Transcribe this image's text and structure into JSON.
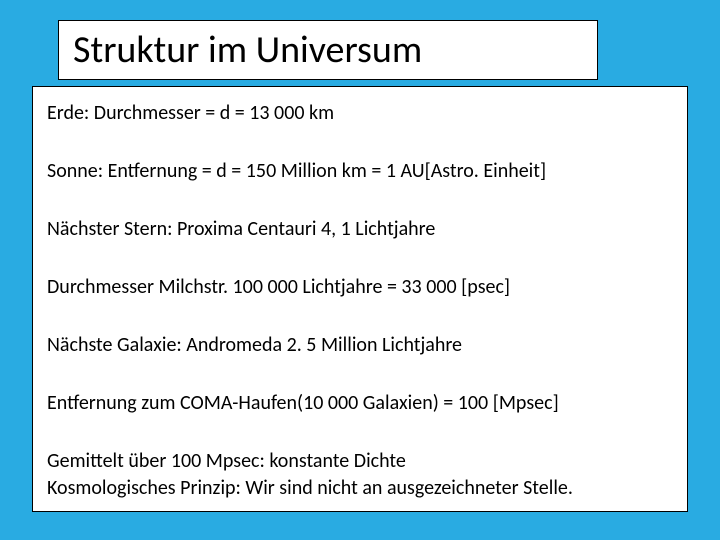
{
  "colors": {
    "background": "#29abe2",
    "box_fill": "#ffffff",
    "box_border": "#000000",
    "text": "#000000"
  },
  "typography": {
    "title_fontsize_pt": 29,
    "body_fontsize_pt": 15,
    "font_family": "Calibri"
  },
  "title": "Struktur im Universum",
  "lines": {
    "l1": "Erde: Durchmesser = d = 13 000 km",
    "l2": "Sonne: Entfernung = d = 150 Million km = 1 AU[Astro. Einheit]",
    "l3": "Nächster Stern:  Proxima Centauri 4, 1 Lichtjahre",
    "l4": "Durchmesser Milchstr. 100 000 Lichtjahre = 33 000 [psec]",
    "l5": "Nächste Galaxie: Andromeda 2. 5 Million Lichtjahre",
    "l6": "Entfernung zum COMA-Haufen(10 000 Galaxien) = 100 [Mpsec]",
    "l7a": "Gemittelt über 100 Mpsec:   konstante Dichte",
    "l7b": "Kosmologisches Prinzip: Wir sind nicht an ausgezeichneter Stelle."
  }
}
